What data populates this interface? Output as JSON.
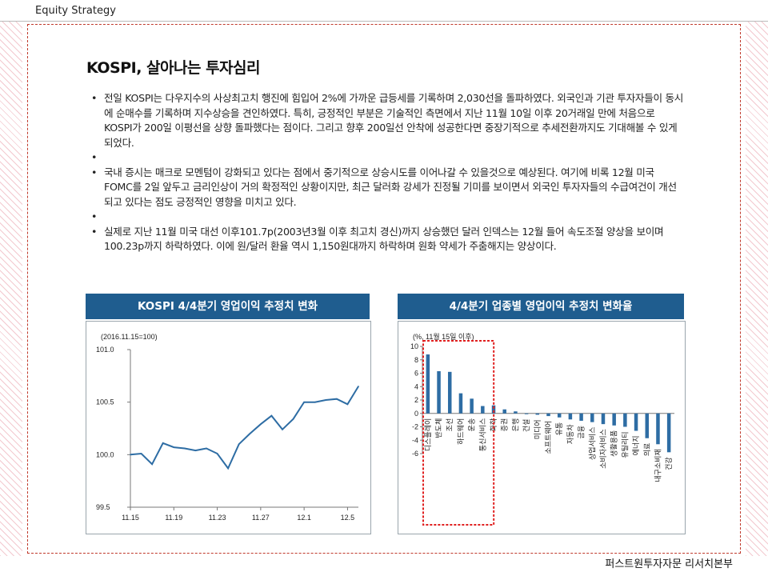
{
  "header": {
    "label": "Equity Strategy"
  },
  "title": "KOSPI, 살아나는 투자심리",
  "bullets": [
    "전일 KOSPI는 다우지수의 사상최고치 행진에 힘입어 2%에 가까운 급등세를 기록하며 2,030선을 돌파하였다. 외국인과 기관 투자자들이 동시에 순매수를 기록하며 지수상승을 견인하였다. 특히, 긍정적인 부분은 기술적인 측면에서 지난 11월 10일 이후 20거래일 만에 처음으로 KOSPI가 200일 이평선을 상향 돌파했다는 점이다. 그리고 향후 200일선 안착에 성공한다면 중장기적으로 추세전환까지도 기대해볼 수 있게 되었다.",
    "",
    "국내 증시는 매크로 모멘텀이 강화되고 있다는 점에서 중기적으로 상승시도를 이어나갈 수 있을것으로 예상된다. 여기에 비록 12월 미국 FOMC를 2일 앞두고 금리인상이 거의 확정적인 상황이지만, 최근 달러화 강세가 진정될 기미를 보이면서 외국인 투자자들의 수급여건이 개선되고 있다는 점도 긍정적인 영향을 미치고 있다.",
    "",
    "실제로 지난 11월 미국 대선 이후101.7p(2003년3월 이후 최고치 경신)까지 상승했던 달러 인덱스는 12월 들어 속도조절 양상을 보이며100.23p까지 하락하였다. 이에 원/달러 환율 역시 1,150원대까지 하락하며 원화 약세가 주춤해지는 양상이다."
  ],
  "footer": "퍼스트원투자자문 리서치본부",
  "colors": {
    "panel_header": "#1f5d8f",
    "bar": "#2e6da4",
    "line": "#2e6da4",
    "highlight": "#e02020"
  },
  "chart_data": [
    {
      "type": "line",
      "title": "KOSPI 4/4분기 영업이익 추정치 변화",
      "note": "(2016.11.15=100)",
      "x_ticks": [
        "11.15",
        "11.19",
        "11.23",
        "11.27",
        "12.1",
        "12.5"
      ],
      "y_ticks": [
        "101.0",
        "100.5",
        "100.0",
        "99.5"
      ],
      "ylim": [
        99.5,
        101.0
      ],
      "x": [
        0,
        1,
        2,
        3,
        4,
        5,
        6,
        7,
        8,
        9,
        10,
        11,
        12,
        13,
        14,
        15,
        16,
        17,
        18,
        19,
        20,
        21
      ],
      "values": [
        100.0,
        100.01,
        99.91,
        100.11,
        100.07,
        100.06,
        100.04,
        100.06,
        100.01,
        99.87,
        100.1,
        100.2,
        100.29,
        100.37,
        100.24,
        100.34,
        100.5,
        100.5,
        100.52,
        100.53,
        100.48,
        100.65
      ]
    },
    {
      "type": "bar",
      "title": "4/4분기 업종별 영업이익 추정치 변화율",
      "note": "(%, 11월 15일 이후)",
      "y_ticks": [
        10,
        8,
        6,
        4,
        2,
        0,
        -2,
        -4,
        -6
      ],
      "ylim": [
        -6,
        10
      ],
      "categories": [
        "디스플레이",
        "반도체",
        "조선",
        "하드웨어",
        "운송",
        "통신서비스",
        "화학",
        "증권",
        "은행",
        "건설",
        "미디어",
        "소프트웨어",
        "유통",
        "자동차",
        "금융",
        "상업서비스",
        "소비자서비스",
        "생활용품",
        "유틸리티",
        "에너지",
        "의료",
        "내구소비재",
        "건강"
      ],
      "values": [
        8.8,
        6.3,
        6.2,
        3.0,
        2.2,
        1.1,
        1.2,
        0.6,
        0.3,
        -0.1,
        -0.2,
        -0.4,
        -0.6,
        -0.9,
        -1.1,
        -1.3,
        -1.6,
        -1.8,
        -2.0,
        -2.6,
        -3.7,
        -4.6,
        -5.8
      ],
      "highlighted_count": 6
    }
  ]
}
